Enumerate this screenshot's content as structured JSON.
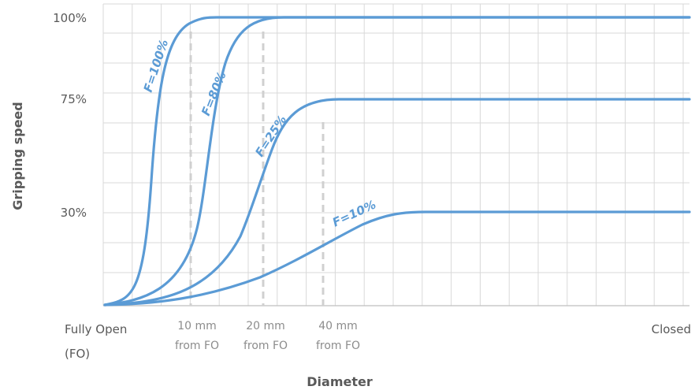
{
  "chart_data": {
    "type": "line",
    "title": "",
    "xlabel": "Diameter",
    "ylabel": "Gripping speed",
    "y_ticks": [
      {
        "label": "100%",
        "value": 100
      },
      {
        "label": "75%",
        "value": 75
      },
      {
        "label": "30%",
        "value": 30
      }
    ],
    "x_ticks": {
      "start": {
        "line1": "Fully Open",
        "line2": "(FO)"
      },
      "end": "Closed"
    },
    "x_markers": [
      {
        "line1": "10 mm",
        "line2": "from FO"
      },
      {
        "line1": "20 mm",
        "line2": "from FO"
      },
      {
        "line1": "40 mm",
        "line2": "from FO"
      }
    ],
    "series": [
      {
        "name": "F=100%",
        "plateau": 100
      },
      {
        "name": "F=80%",
        "plateau": 100
      },
      {
        "name": "F=25%",
        "plateau": 75
      },
      {
        "name": "F=10%",
        "plateau": 30
      }
    ],
    "grid": true,
    "line_color": "#5b9bd5"
  }
}
